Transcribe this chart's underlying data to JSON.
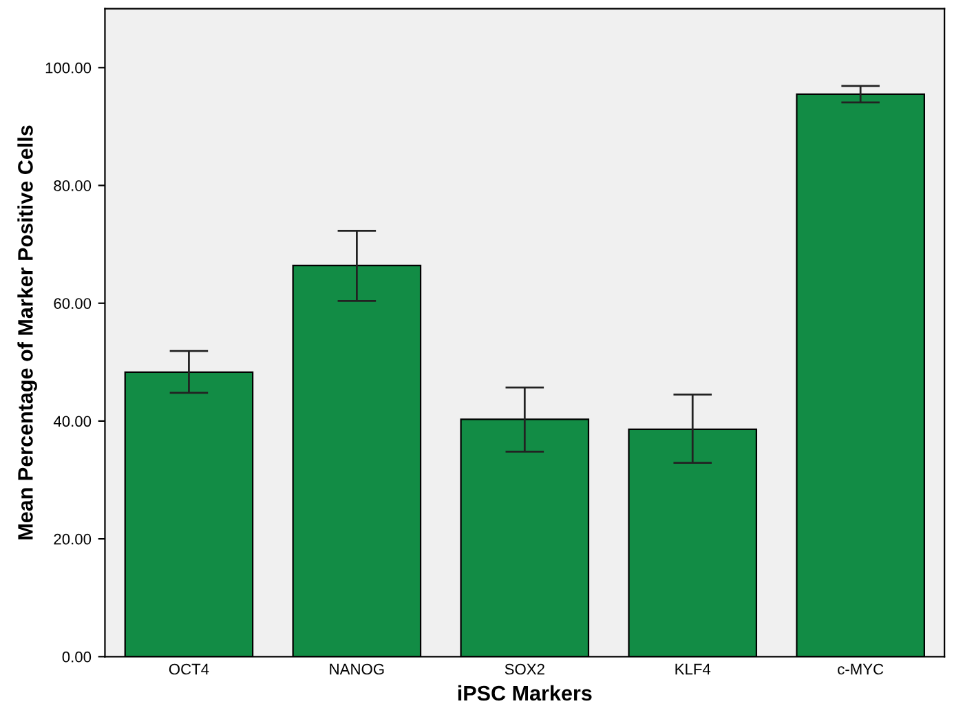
{
  "chart_data": {
    "type": "bar",
    "xlabel": "iPSC Markers",
    "ylabel": "Mean Percentage of Marker Positive Cells",
    "categories": [
      "OCT4",
      "NANOG",
      "SOX2",
      "KLF4",
      "c-MYC"
    ],
    "values": [
      48.3,
      66.4,
      40.3,
      38.6,
      95.5
    ],
    "errors": [
      [
        44.8,
        51.9
      ],
      [
        60.4,
        72.3
      ],
      [
        34.8,
        45.7
      ],
      [
        32.9,
        44.5
      ],
      [
        94.1,
        96.9
      ]
    ],
    "color": "#128c45",
    "ylim": [
      0,
      110
    ],
    "yticks": [
      {
        "value": 0,
        "label": "0.00"
      },
      {
        "value": 20,
        "label": "20.00"
      },
      {
        "value": 40,
        "label": "40.00"
      },
      {
        "value": 60,
        "label": "60.00"
      },
      {
        "value": 80,
        "label": "80.00"
      },
      {
        "value": 100,
        "label": "100.00"
      }
    ],
    "grid": false
  }
}
